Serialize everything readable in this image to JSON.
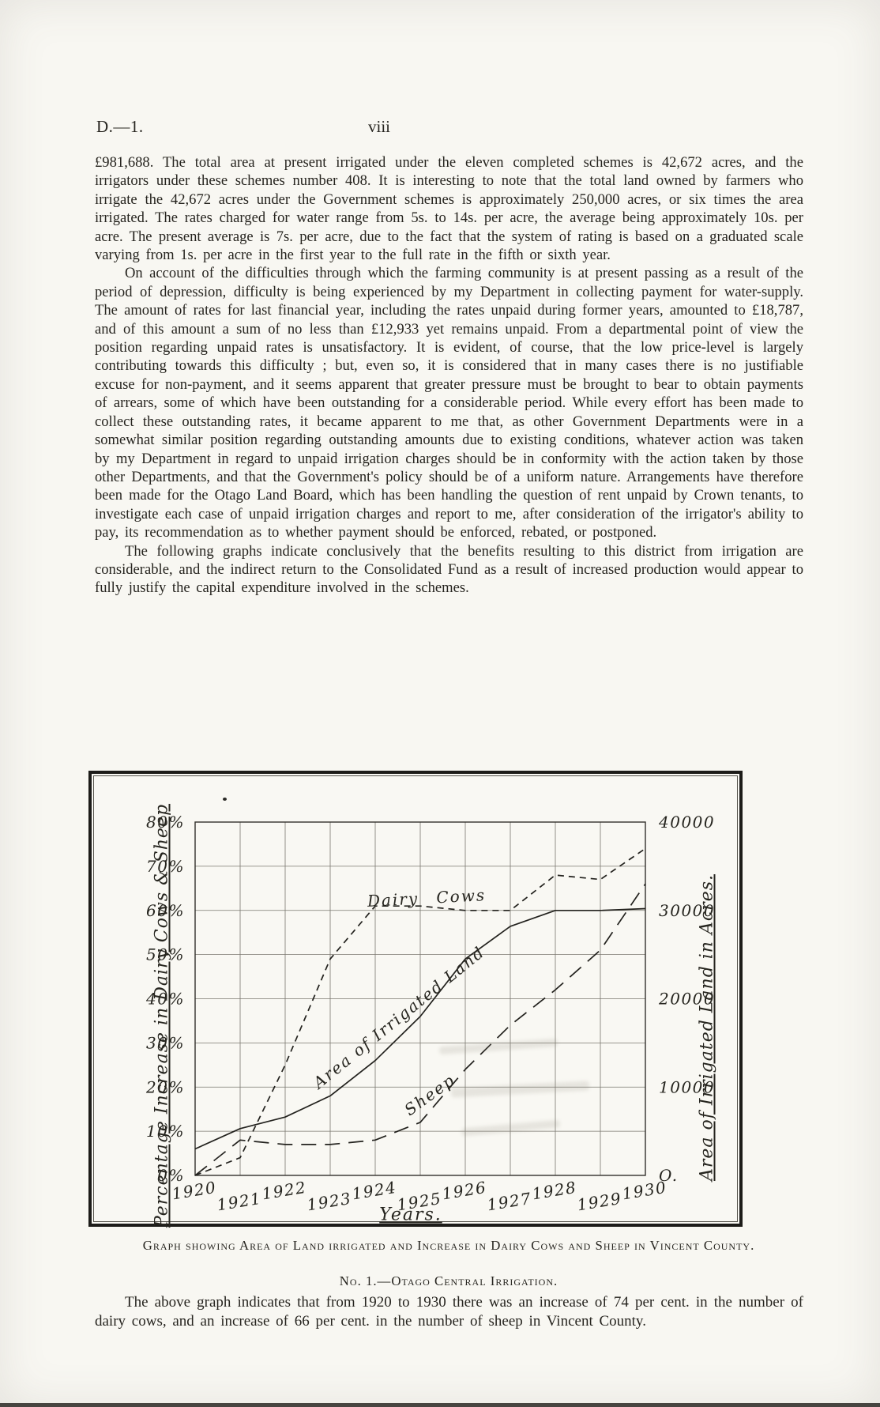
{
  "page": {
    "doc_ref": "D.—1.",
    "page_number": "viii"
  },
  "body": {
    "paragraph1": "£981,688.  The total area at present irrigated under the eleven completed schemes is 42,672 acres, and the irrigators under these schemes number 408.  It is interesting to note that the total land owned by farmers who irrigate the 42,672 acres under the Government schemes is approximately 250,000 acres, or six times the area irrigated.  The rates charged for water range from 5s. to 14s. per acre, the average being approximately 10s. per acre.  The present average is 7s. per acre, due to the fact that the system of rating is based on a graduated scale varying from 1s. per acre in the first year to the full rate in the fifth or sixth year.",
    "paragraph2": "On account of the difficulties through which the farming community is at present passing as a result of the period of depression, difficulty is being experienced by my Department in collecting payment for water-supply.  The amount of rates for last financial year, including the rates unpaid during former years, amounted to £18,787, and of this amount a sum of no less than £12,933 yet remains unpaid.  From a departmental point of view the position regarding unpaid rates is unsatisfactory.  It is evident, of course, that the low price-level is largely contributing towards this difficulty ;  but, even so, it is considered that in many cases there is no justifiable excuse for non-payment, and it seems apparent that greater pressure must be brought to bear to obtain payments of arrears, some of which have been outstanding for a considerable period.  While every effort has been made to collect these outstanding rates, it became apparent to me that, as other Government Departments were in a somewhat similar position regarding outstanding amounts due to existing conditions, whatever action was taken by my Department in regard to unpaid irrigation charges should be in conformity with the action taken by those other Departments, and that the Government's policy should be of a uniform nature.  Arrangements have therefore been made for the Otago Land Board, which has been handling the question of rent unpaid by Crown tenants, to investigate each case of unpaid irrigation charges and report to me, after consideration of the irrigator's ability to pay, its recommendation as to whether payment should be enforced, rebated, or postponed.",
    "paragraph3": "The following graphs indicate conclusively that the benefits resulting to this district from irrigation are considerable, and the indirect return to the Consolidated Fund as a result of increased production would appear to fully justify the capital expenditure involved in the schemes."
  },
  "figure": {
    "caption": "Graph showing Area of Land irrigated and Increase in Dairy Cows and Sheep in Vincent County.",
    "figure_number": "No. 1.—Otago Central Irrigation."
  },
  "closing": {
    "paragraph": "The above graph indicates that from 1920 to 1930 there was an increase of 74 per cent. in the number of dairy cows, and an increase of 66 per cent. in the number of sheep in Vincent County."
  },
  "chart_data": {
    "type": "line",
    "title": "Graph showing Area of Land irrigated and Increase in Dairy Cows and Sheep in Vincent County",
    "grid": true,
    "legend_position": "labels-on-curves",
    "x_axis": {
      "label": "Years.",
      "ticks": [
        "1920",
        "1921",
        "1922",
        "1923",
        "1924",
        "1925",
        "1926",
        "1927",
        "1928",
        "1929",
        "1930"
      ]
    },
    "left_axis": {
      "label": "Percentage Increase in Dairy Cows & Sheep",
      "unit": "percent",
      "range": [
        0,
        80
      ],
      "ticks": [
        "80%",
        "70%",
        "60%",
        "50%",
        "40%",
        "30%",
        "20%",
        "10%",
        "0%"
      ]
    },
    "right_axis": {
      "label": "Area of Irrigated Land in Acres.",
      "unit": "acres",
      "range": [
        0,
        40000
      ],
      "ticks": [
        "40000",
        "30000",
        "20000",
        "10000",
        "O."
      ]
    },
    "series": [
      {
        "name": "Dairy Cows",
        "axis": "left",
        "line_style": "short-dash",
        "values": [
          0,
          4,
          25,
          49,
          61,
          61,
          60,
          60,
          68,
          67,
          74
        ]
      },
      {
        "name": "Sheep",
        "axis": "left",
        "line_style": "long-dash",
        "values": [
          0,
          8,
          7,
          7,
          8,
          12,
          24,
          34,
          42,
          51,
          66
        ]
      },
      {
        "name": "Area of Irrigated Land",
        "axis": "right",
        "line_style": "solid",
        "values": [
          3000,
          5300,
          6600,
          9000,
          13000,
          18000,
          24500,
          28200,
          30000,
          30000,
          30200
        ]
      }
    ]
  },
  "colors": {
    "paper": "#f8f7f2",
    "ink": "#26241f"
  }
}
